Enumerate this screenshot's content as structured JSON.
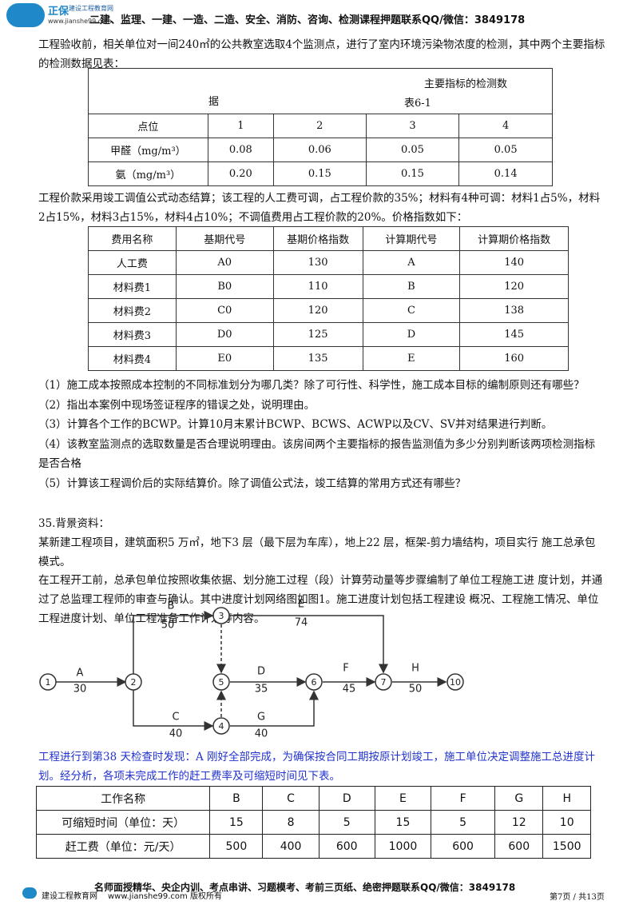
{
  "header": {
    "logo": "正保",
    "brand": "建设工程教育网",
    "url": "www.jianshe99.com",
    "contact": "二建、监理、一建、一造、二造、安全、消防、咨询、检测课程押题联系QQ/微信：3849178"
  },
  "para1": "工程验收前，相关单位对一间240㎡的公共教室选取4个监测点，进行了室内环境污染物浓度的检测，其中两个主要指标的检测数据见表：",
  "table1": {
    "caption": [
      "主要指标的检测数",
      "据",
      "表6-1"
    ],
    "rows": [
      [
        "点位",
        "1",
        "2",
        "3",
        "4"
      ],
      [
        "甲醛（mg/m³）",
        "0.08",
        "0.06",
        "0.05",
        "0.05"
      ],
      [
        "氨（mg/m³）",
        "0.20",
        "0.15",
        "0.15",
        "0.14"
      ]
    ]
  },
  "para2": "工程价款采用竣工调值公式动态结算；该工程的人工费可调，占工程价款的35%；材料有4种可调：材料1占5%，材料2占15%，材料3占15%，材料4占10%；不调值费用占工程价款的20%。价格指数如下：",
  "table2": {
    "rows": [
      [
        "费用名称",
        "基期代号",
        "基期价格指数",
        "计算期代号",
        "计算期价格指数"
      ],
      [
        "人工费",
        "A0",
        "130",
        "A",
        "140"
      ],
      [
        "材料费1",
        "B0",
        "110",
        "B",
        "120"
      ],
      [
        "材料费2",
        "C0",
        "120",
        "C",
        "138"
      ],
      [
        "材料费3",
        "D0",
        "125",
        "D",
        "145"
      ],
      [
        "材料费4",
        "E0",
        "135",
        "E",
        "160"
      ]
    ]
  },
  "questions": [
    "（1）施工成本按照成本控制的不同标准划分为哪几类？除了可行性、科学性，施工成本目标的编制原则还有哪些？",
    "（2）指出本案例中现场签证程序的错误之处，说明理由。",
    "（3）计算各个工作的BCWP。计算10月末累计BCWP、BCWS、ACWP以及CV、SV并对结果进行判断。",
    "（4）该教室监测点的选取数量是否合理说明理由。该房间两个主要指标的报告监测值为多少分别判断该两项检测指标是否合格",
    "（5）计算该工程调价后的实际结算价。除了调值公式法，竣工结算的常用方式还有哪些？"
  ],
  "section": "35.背景资料：",
  "para3": "某新建工程项目，建筑面积5 万㎡，地下3 层（最下层为车库），地上22 层，框架-剪力墙结构，项目实行 施工总承包模式。",
  "para4": "在工程开工前，总承包单位按照收集依据、划分施工过程（段）计算劳动量等步骤编制了单位工程施工进 度计划，并通过了总监理工程师的审查与确认。其中进度计划网络图如图1。施工进度计划包括工程建设 概况、工程施工情况、单位工程进度计划、单位工程准备工作计划等内容。",
  "diagram": {
    "nodes": [
      "1",
      "2",
      "3",
      "4",
      "5",
      "6",
      "7",
      "10"
    ],
    "edges": [
      {
        "name": "A",
        "duration": "30"
      },
      {
        "name": "B",
        "duration": "50"
      },
      {
        "name": "E",
        "duration": "74"
      },
      {
        "name": "D",
        "duration": "35"
      },
      {
        "name": "F",
        "duration": "45"
      },
      {
        "name": "H",
        "duration": "50"
      },
      {
        "name": "C",
        "duration": "40"
      },
      {
        "name": "G",
        "duration": "40"
      }
    ]
  },
  "para5": "工程进行到第38 天检查时发现：A 刚好全部完成，为确保按合同工期按原计划竣工，施工单位决定调整施工总进度计划。经分析，各项未完成工作的赶工费率及可缩短时间见下表。",
  "table3": {
    "rows": [
      [
        "工作名称",
        "B",
        "C",
        "D",
        "E",
        "F",
        "G",
        "H"
      ],
      [
        "可缩短时间（单位：天）",
        "15",
        "8",
        "5",
        "15",
        "5",
        "12",
        "10"
      ],
      [
        "赶工费（单位：元/天）",
        "500",
        "400",
        "600",
        "1000",
        "600",
        "600",
        "1500"
      ]
    ]
  },
  "footer": {
    "brand": "建设工程教育网",
    "copyright": "www.jianshe99.com 版权所有",
    "contact": "名师面授精华、央企内训、考点串讲、习题模考、考前三页纸、绝密押题联系QQ/微信：3849178",
    "page": "第7页 / 共13页"
  }
}
